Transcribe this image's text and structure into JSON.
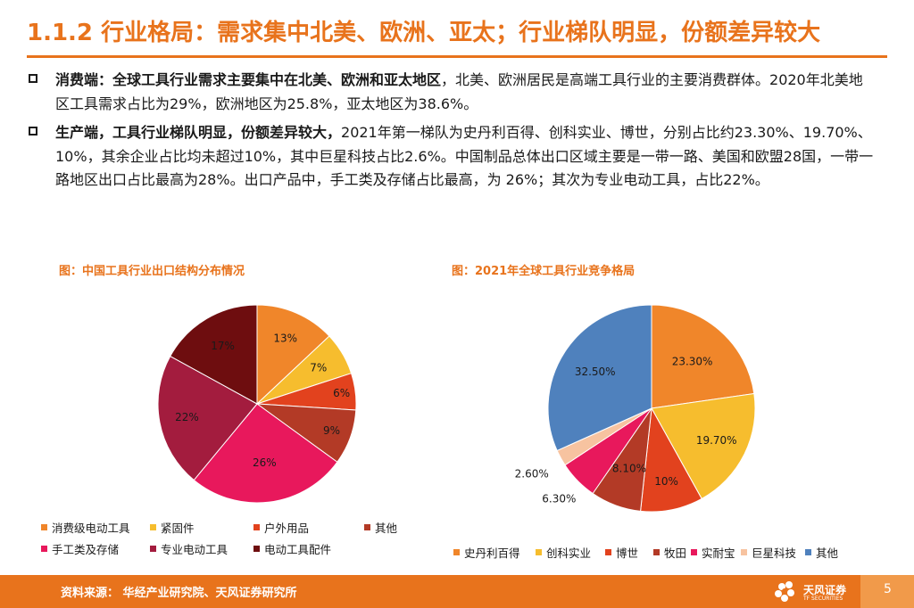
{
  "slide": {
    "title": "1.1.2 行业格局：需求集中北美、欧洲、亚太；行业梯队明显，份额差异较大"
  },
  "bullets": [
    {
      "lead": "消费端：全球工具行业需求主要集中在北美、欧洲和亚太地区",
      "body": "，北美、欧洲居民是高端工具行业的主要消费群体。2020年北美地区工具需求占比为29%，欧洲地区为25.8%，亚太地区为38.6%。"
    },
    {
      "lead": "生产端，工具行业梯队明显，份额差异较大，",
      "body": "2021年第一梯队为史丹利百得、创科实业、博世，分别占比约23.30%、19.70%、10%，其余企业占比均未超过10%，其中巨星科技占比2.6%。中国制品总体出口区域主要是一带一路、美国和欧盟28国，一带一路地区出口占比最高为28%。出口产品中，手工类及存储占比最高，为 26%；其次为专业电动工具，占比22%。"
    }
  ],
  "chart_data": [
    {
      "type": "pie",
      "title": "图：中国工具行业出口结构分布情况",
      "legend_position": "bottom",
      "slices": [
        {
          "name": "消费级电动工具",
          "value": 13,
          "label": "13%",
          "color": "#f0862a"
        },
        {
          "name": "紧固件",
          "value": 7,
          "label": "7%",
          "color": "#f6bd2e"
        },
        {
          "name": "户外用品",
          "value": 6,
          "label": "6%",
          "color": "#e2421e"
        },
        {
          "name": "其他",
          "value": 9,
          "label": "9%",
          "color": "#b33a26"
        },
        {
          "name": "手工类及存储",
          "value": 26,
          "label": "26%",
          "color": "#e8185c"
        },
        {
          "name": "专业电动工具",
          "value": 22,
          "label": "22%",
          "color": "#a31c3e"
        },
        {
          "name": "电动工具配件",
          "value": 17,
          "label": "17%",
          "color": "#6e0d0f"
        }
      ]
    },
    {
      "type": "pie",
      "title": "图：2021年全球工具行业竞争格局",
      "legend_position": "bottom",
      "slices": [
        {
          "name": "史丹利百得",
          "value": 23.3,
          "label": "23.30%",
          "color": "#f0862a"
        },
        {
          "name": "创科实业",
          "value": 19.7,
          "label": "19.70%",
          "color": "#f6bd2e"
        },
        {
          "name": "博世",
          "value": 10,
          "label": "10%",
          "color": "#e2421e"
        },
        {
          "name": "牧田",
          "value": 8.1,
          "label": "8.10%",
          "color": "#b33a26"
        },
        {
          "name": "实耐宝",
          "value": 6.3,
          "label": "6.30%",
          "color": "#e8185c"
        },
        {
          "name": "巨星科技",
          "value": 2.6,
          "label": "2.60%",
          "color": "#f7c3a0"
        },
        {
          "name": "其他",
          "value": 32.5,
          "label": "32.50%",
          "color": "#4f81bd"
        }
      ]
    }
  ],
  "footer": {
    "source": "资料来源：   华经产业研究院、天风证券研究所",
    "brand": "天风证券",
    "brand_sub": "TF SECURITIES",
    "page_number": "5"
  }
}
